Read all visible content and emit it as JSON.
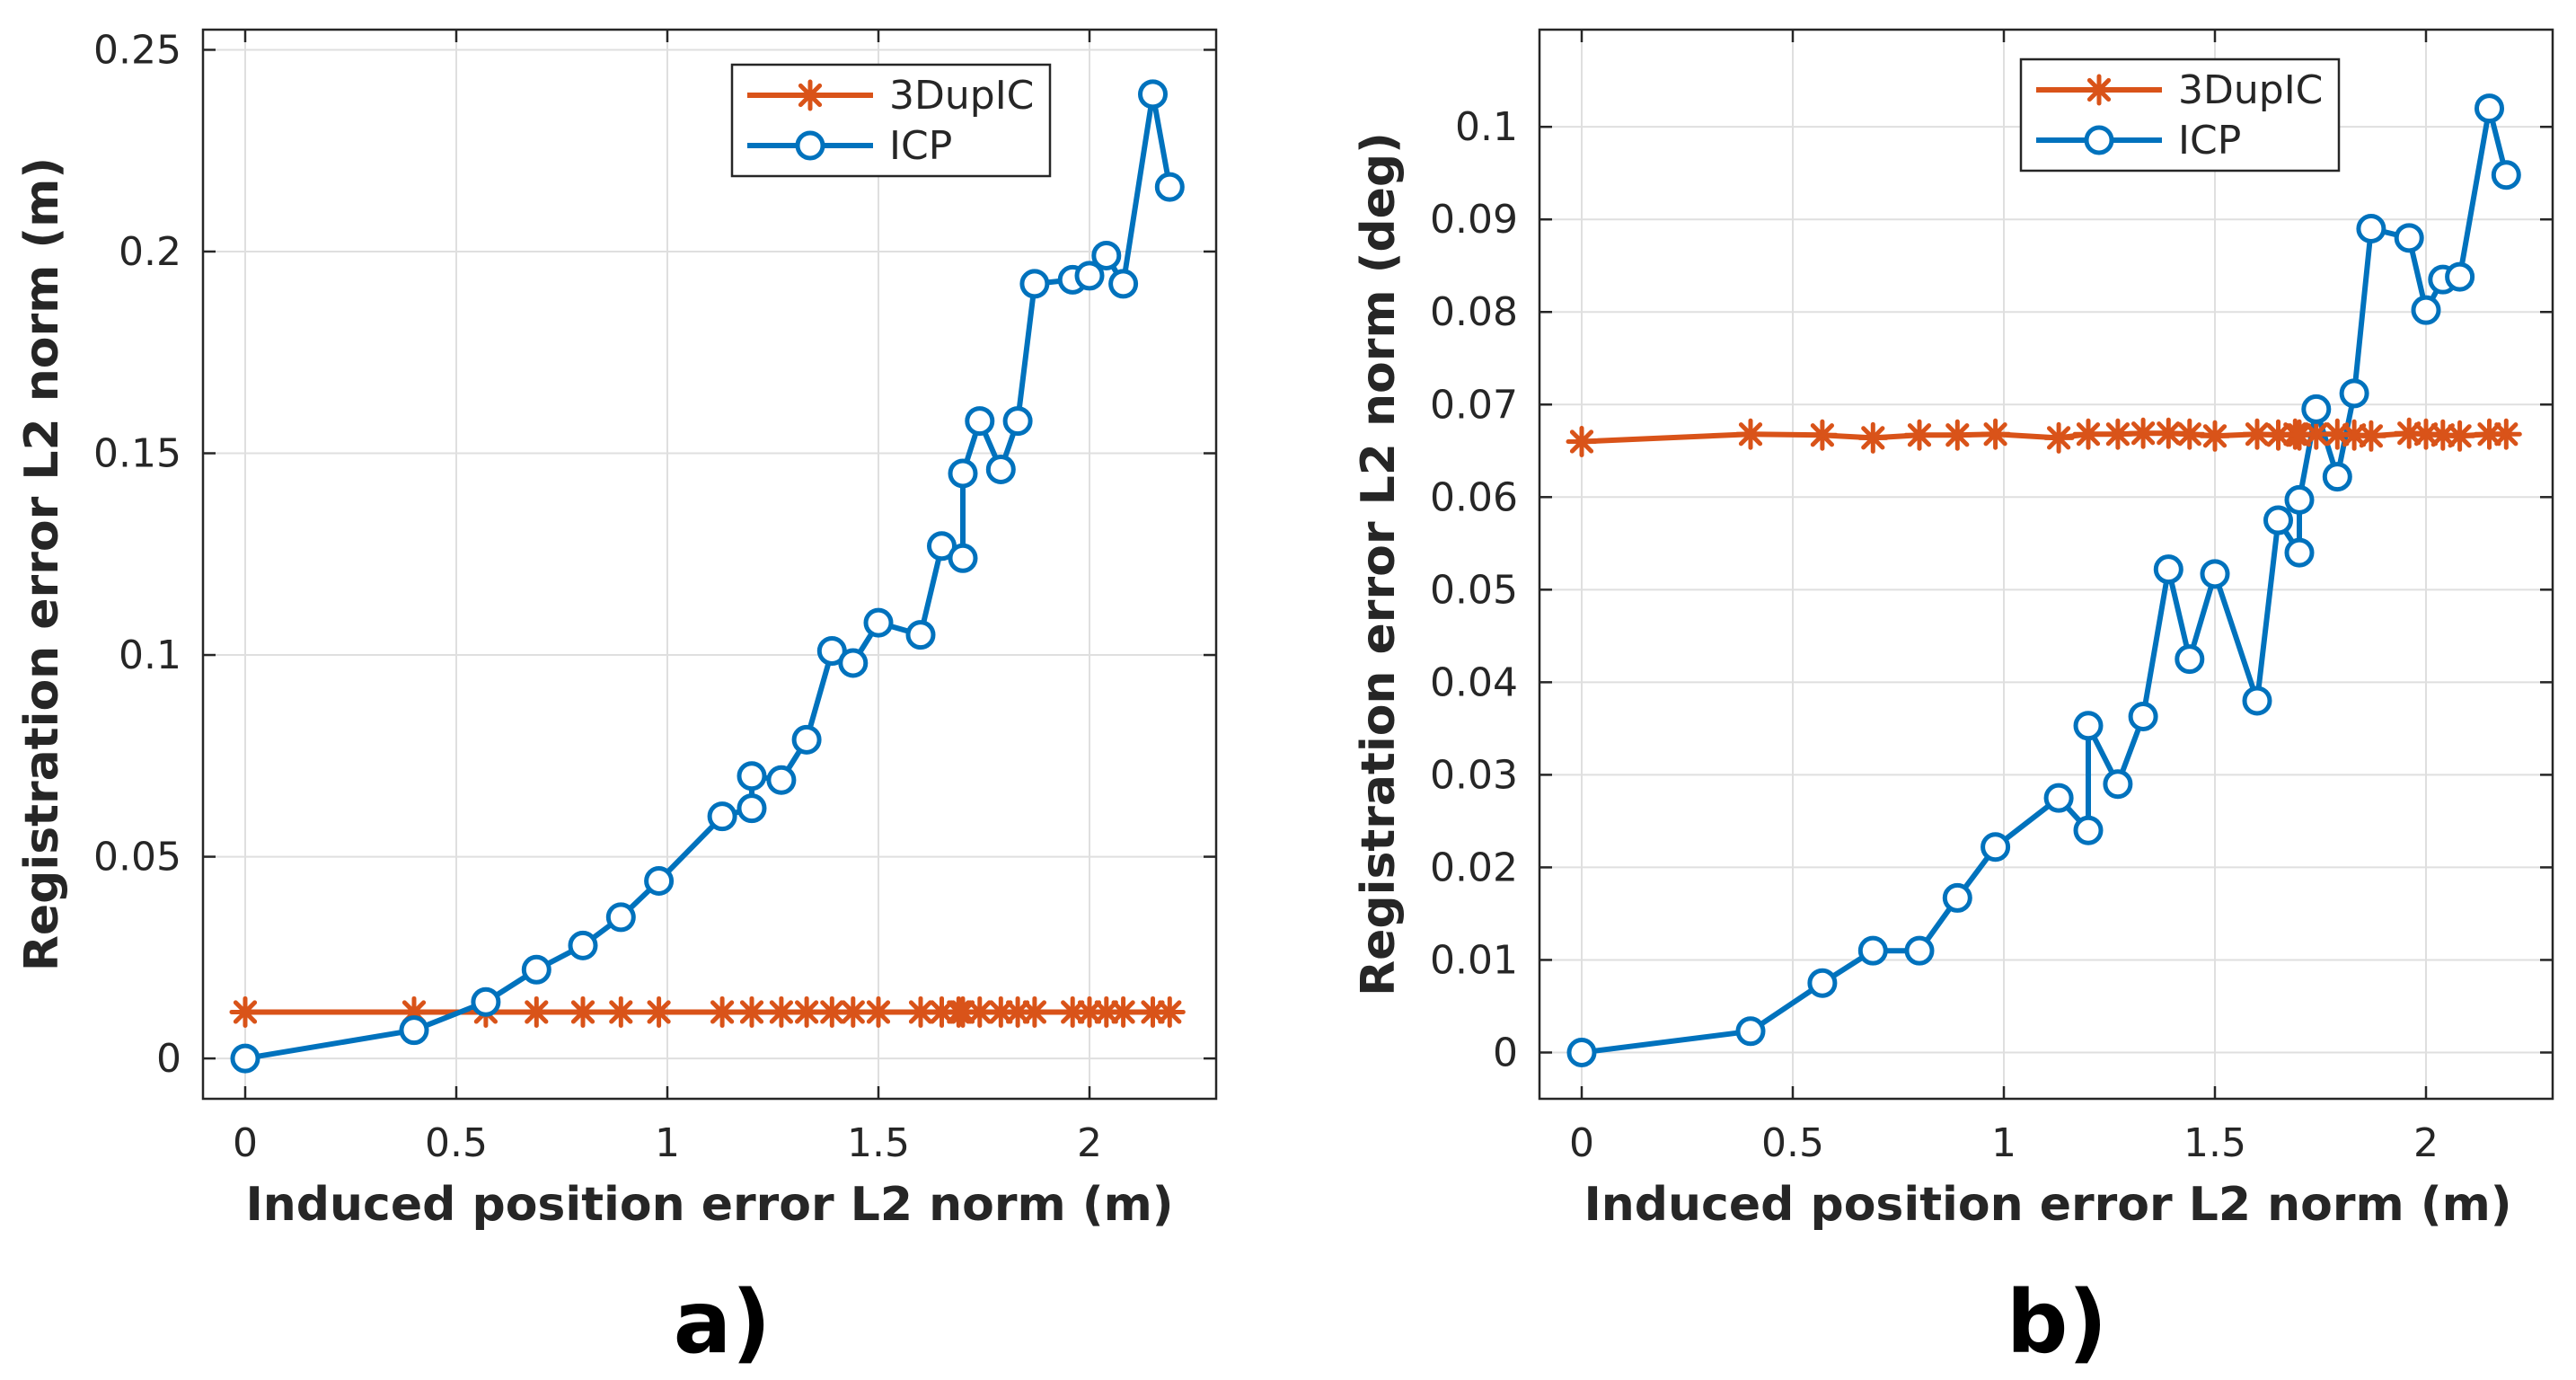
{
  "colors": {
    "dupic": "#d95319",
    "icp": "#0072bd",
    "axis": "#262626",
    "grid": "#dfdfdf"
  },
  "chart_data": [
    {
      "type": "line",
      "panel_label": "a)",
      "xlabel": "Induced position error L2 norm (m)",
      "ylabel": "Registration error L2 norm (m)",
      "xlim": [
        -0.1,
        2.3
      ],
      "ylim": [
        -0.01,
        0.255
      ],
      "xticks": [
        0,
        0.5,
        1,
        1.5,
        2
      ],
      "xtick_labels": [
        "0",
        "0.5",
        "1",
        "1.5",
        "2"
      ],
      "yticks": [
        0,
        0.05,
        0.1,
        0.15,
        0.2,
        0.25
      ],
      "ytick_labels": [
        "0",
        "0.05",
        "0.1",
        "0.15",
        "0.2",
        "0.25"
      ],
      "grid": true,
      "legend": "top-right",
      "series": [
        {
          "name": "3DupIC",
          "marker": "asterisk",
          "x": [
            0,
            0.4,
            0.57,
            0.69,
            0.8,
            0.89,
            0.98,
            1.13,
            1.2,
            1.27,
            1.33,
            1.39,
            1.44,
            1.5,
            1.6,
            1.65,
            1.69,
            1.7,
            1.74,
            1.79,
            1.83,
            1.87,
            1.96,
            2.0,
            2.04,
            2.08,
            2.15,
            2.19
          ],
          "y": [
            0.0115,
            0.0115,
            0.0115,
            0.0115,
            0.0115,
            0.0115,
            0.0115,
            0.0115,
            0.0115,
            0.0115,
            0.0115,
            0.0115,
            0.0115,
            0.0115,
            0.0115,
            0.0115,
            0.0115,
            0.0115,
            0.0115,
            0.0115,
            0.0115,
            0.0115,
            0.0115,
            0.0115,
            0.0115,
            0.0115,
            0.0115,
            0.0115
          ]
        },
        {
          "name": "ICP",
          "marker": "circle",
          "x": [
            0,
            0.4,
            0.57,
            0.69,
            0.8,
            0.89,
            0.98,
            1.13,
            1.2,
            1.2,
            1.27,
            1.33,
            1.39,
            1.44,
            1.5,
            1.6,
            1.65,
            1.7,
            1.7,
            1.74,
            1.79,
            1.83,
            1.87,
            1.96,
            2.0,
            2.04,
            2.08,
            2.15,
            2.19
          ],
          "y": [
            0,
            0.007,
            0.014,
            0.022,
            0.028,
            0.035,
            0.044,
            0.06,
            0.062,
            0.07,
            0.069,
            0.079,
            0.101,
            0.098,
            0.108,
            0.105,
            0.127,
            0.124,
            0.145,
            0.158,
            0.146,
            0.158,
            0.192,
            0.193,
            0.194,
            0.199,
            0.192,
            0.239,
            0.216
          ]
        }
      ]
    },
    {
      "type": "line",
      "panel_label": "b)",
      "xlabel": "Induced position error L2 norm (m)",
      "ylabel": "Registration error L2 norm (deg)",
      "xlim": [
        -0.1,
        2.3
      ],
      "ylim": [
        -0.005,
        0.1105
      ],
      "xticks": [
        0,
        0.5,
        1,
        1.5,
        2
      ],
      "xtick_labels": [
        "0",
        "0.5",
        "1",
        "1.5",
        "2"
      ],
      "yticks": [
        0,
        0.01,
        0.02,
        0.03,
        0.04,
        0.05,
        0.06,
        0.07,
        0.08,
        0.09,
        0.1
      ],
      "ytick_labels": [
        "0",
        "0.01",
        "0.02",
        "0.03",
        "0.04",
        "0.05",
        "0.06",
        "0.07",
        "0.08",
        "0.09",
        "0.1"
      ],
      "grid": true,
      "legend": "top-right",
      "series": [
        {
          "name": "3DupIC",
          "marker": "asterisk",
          "x": [
            0,
            0.4,
            0.57,
            0.69,
            0.8,
            0.89,
            0.98,
            1.13,
            1.2,
            1.27,
            1.33,
            1.39,
            1.44,
            1.5,
            1.6,
            1.65,
            1.69,
            1.7,
            1.74,
            1.79,
            1.83,
            1.87,
            1.96,
            2.0,
            2.04,
            2.08,
            2.15,
            2.19
          ],
          "y": [
            0.066,
            0.0668,
            0.0667,
            0.0664,
            0.0667,
            0.0667,
            0.0668,
            0.0664,
            0.0668,
            0.0668,
            0.0669,
            0.0669,
            0.0668,
            0.0666,
            0.0668,
            0.0667,
            0.0668,
            0.0667,
            0.0668,
            0.0668,
            0.0667,
            0.0666,
            0.0669,
            0.0668,
            0.0667,
            0.0666,
            0.0668,
            0.0668
          ]
        },
        {
          "name": "ICP",
          "marker": "circle",
          "x": [
            0,
            0.4,
            0.57,
            0.69,
            0.8,
            0.89,
            0.98,
            1.13,
            1.2,
            1.2,
            1.27,
            1.33,
            1.39,
            1.44,
            1.5,
            1.6,
            1.65,
            1.7,
            1.7,
            1.74,
            1.79,
            1.83,
            1.87,
            1.96,
            2.0,
            2.04,
            2.08,
            2.15,
            2.19
          ],
          "y": [
            0,
            0.0023,
            0.0075,
            0.011,
            0.011,
            0.0167,
            0.0222,
            0.0275,
            0.024,
            0.0353,
            0.029,
            0.0363,
            0.0522,
            0.0425,
            0.0517,
            0.038,
            0.0575,
            0.054,
            0.0597,
            0.0695,
            0.0622,
            0.0712,
            0.089,
            0.088,
            0.0802,
            0.0835,
            0.0838,
            0.102,
            0.0948
          ]
        }
      ]
    }
  ]
}
